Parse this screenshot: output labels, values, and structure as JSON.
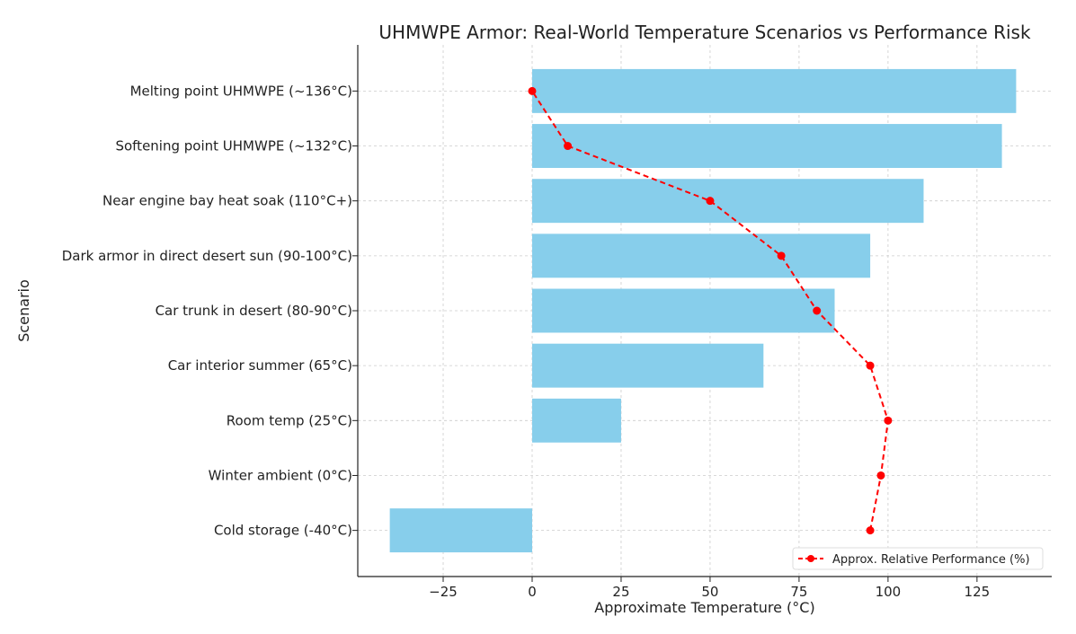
{
  "chart_data": {
    "type": "bar",
    "orientation": "horizontal",
    "title": "UHMWPE Armor: Real-World Temperature Scenarios vs Performance Risk",
    "xlabel": "Approximate Temperature (°C)",
    "ylabel": "Scenario",
    "xlim": [
      -49,
      146
    ],
    "xticks": [
      -25,
      0,
      25,
      50,
      75,
      100,
      125
    ],
    "xtick_labels": [
      "−25",
      "0",
      "25",
      "50",
      "75",
      "100",
      "125"
    ],
    "grid": true,
    "legend_position": "bottom-right",
    "categories": [
      "Cold storage (-40°C)",
      "Winter ambient (0°C)",
      "Room temp (25°C)",
      "Car interior summer (65°C)",
      "Car trunk in desert (80-90°C)",
      "Dark armor in direct desert sun (90-100°C)",
      "Near engine bay heat soak (110°C+)",
      "Softening point UHMWPE (~132°C)",
      "Melting point UHMWPE (~136°C)"
    ],
    "values": [
      -40,
      0,
      25,
      65,
      85,
      95,
      110,
      132,
      136
    ],
    "bar_color": "#87ceeb",
    "line_series": {
      "name": "Approx. Relative Performance (%)",
      "values": [
        95,
        98,
        100,
        95,
        80,
        70,
        50,
        10,
        0
      ],
      "color": "#ff0000",
      "style": "dashed-with-markers"
    }
  }
}
